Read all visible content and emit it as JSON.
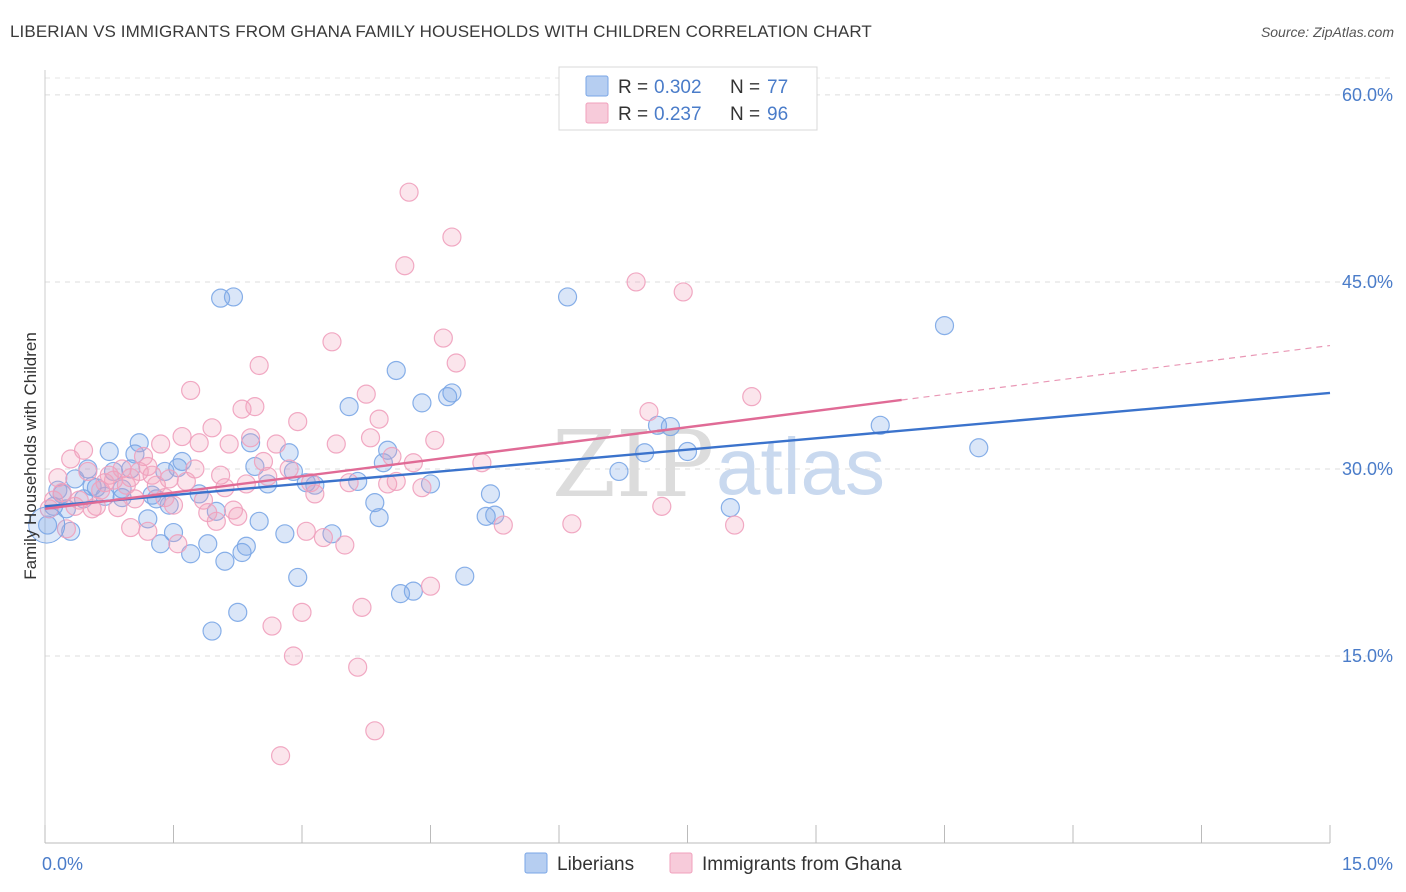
{
  "header": {
    "title": "LIBERIAN VS IMMIGRANTS FROM GHANA FAMILY HOUSEHOLDS WITH CHILDREN CORRELATION CHART",
    "source": "Source: ZipAtlas.com"
  },
  "watermark": {
    "zip": "ZIP",
    "atlas": "atlas"
  },
  "legend_top": {
    "rows": [
      {
        "r_label": "R =",
        "r_value": "0.302",
        "n_label": "N =",
        "n_value": "77",
        "color": "#7aa6e6"
      },
      {
        "r_label": "R =",
        "r_value": "0.237",
        "n_label": "N =",
        "n_value": "96",
        "color": "#f0a0bc"
      }
    ]
  },
  "legend_bottom": {
    "items": [
      {
        "label": "Liberians",
        "color": "#7aa6e6"
      },
      {
        "label": "Immigrants from Ghana",
        "color": "#f0a0bc"
      }
    ]
  },
  "chart_data": {
    "type": "scatter",
    "xlabel": "",
    "ylabel": "Family Households with Children",
    "xlim": [
      0,
      15
    ],
    "ylim": [
      0,
      62
    ],
    "x_tick_labels": [
      {
        "value": 0,
        "label": "0.0%"
      },
      {
        "value": 15,
        "label": "15.0%"
      }
    ],
    "y_tick_labels": [
      {
        "value": 15,
        "label": "15.0%"
      },
      {
        "value": 30,
        "label": "30.0%"
      },
      {
        "value": 45,
        "label": "45.0%"
      },
      {
        "value": 60,
        "label": "60.0%"
      }
    ],
    "grid": true,
    "legend_position": "top-center",
    "series": [
      {
        "name": "Liberians",
        "color": "#7aa6e6",
        "line_color": "#3b73cc",
        "trend": {
          "x": [
            0,
            15
          ],
          "y": [
            27.0,
            36.1
          ],
          "solid_to": 15
        },
        "points": [
          [
            0.03,
            25.5
          ],
          [
            0.1,
            27.0
          ],
          [
            0.2,
            28.0
          ],
          [
            0.3,
            25.0
          ],
          [
            0.35,
            29.2
          ],
          [
            0.45,
            27.6
          ],
          [
            0.5,
            30.0
          ],
          [
            0.6,
            28.5
          ],
          [
            0.7,
            27.8
          ],
          [
            0.75,
            31.4
          ],
          [
            0.8,
            29.8
          ],
          [
            0.9,
            27.7
          ],
          [
            1.0,
            30.0
          ],
          [
            1.05,
            31.2
          ],
          [
            1.1,
            32.1
          ],
          [
            1.2,
            26.0
          ],
          [
            1.3,
            27.6
          ],
          [
            1.35,
            24.0
          ],
          [
            1.4,
            29.8
          ],
          [
            1.5,
            24.9
          ],
          [
            1.55,
            30.1
          ],
          [
            1.6,
            30.6
          ],
          [
            1.7,
            23.2
          ],
          [
            1.8,
            28.0
          ],
          [
            1.9,
            24.0
          ],
          [
            1.95,
            17.0
          ],
          [
            2.0,
            26.6
          ],
          [
            2.05,
            43.7
          ],
          [
            2.1,
            22.6
          ],
          [
            2.2,
            43.8
          ],
          [
            2.25,
            18.5
          ],
          [
            2.3,
            23.3
          ],
          [
            2.35,
            23.8
          ],
          [
            2.4,
            32.1
          ],
          [
            2.45,
            30.2
          ],
          [
            2.5,
            25.8
          ],
          [
            2.6,
            28.8
          ],
          [
            2.8,
            24.8
          ],
          [
            2.85,
            31.3
          ],
          [
            2.9,
            29.8
          ],
          [
            2.95,
            21.3
          ],
          [
            3.05,
            28.9
          ],
          [
            3.15,
            28.7
          ],
          [
            3.35,
            24.8
          ],
          [
            3.55,
            35.0
          ],
          [
            3.65,
            29.0
          ],
          [
            3.85,
            27.3
          ],
          [
            3.9,
            26.1
          ],
          [
            3.95,
            30.5
          ],
          [
            4.0,
            31.5
          ],
          [
            4.1,
            37.9
          ],
          [
            4.15,
            20.0
          ],
          [
            4.3,
            20.2
          ],
          [
            4.4,
            35.3
          ],
          [
            4.5,
            28.8
          ],
          [
            4.7,
            35.8
          ],
          [
            4.75,
            36.1
          ],
          [
            4.9,
            21.4
          ],
          [
            5.15,
            26.2
          ],
          [
            5.2,
            28.0
          ],
          [
            5.25,
            26.3
          ],
          [
            6.1,
            43.8
          ],
          [
            6.7,
            29.8
          ],
          [
            7.0,
            31.3
          ],
          [
            7.15,
            33.5
          ],
          [
            7.3,
            33.4
          ],
          [
            7.5,
            31.4
          ],
          [
            8.0,
            26.9
          ],
          [
            9.75,
            33.5
          ],
          [
            10.5,
            41.5
          ],
          [
            10.9,
            31.7
          ],
          [
            0.15,
            28.3
          ],
          [
            0.25,
            26.8
          ],
          [
            0.55,
            28.6
          ],
          [
            0.9,
            28.4
          ],
          [
            1.25,
            27.9
          ],
          [
            1.45,
            27.1
          ]
        ]
      },
      {
        "name": "Immigrants from Ghana",
        "color": "#f0a0bc",
        "line_color": "#e06b96",
        "trend": {
          "x": [
            0,
            15
          ],
          "y": [
            26.8,
            39.9
          ],
          "solid_to": 10.0
        },
        "points": [
          [
            0.05,
            26.8
          ],
          [
            0.1,
            27.5
          ],
          [
            0.15,
            29.3
          ],
          [
            0.2,
            28.1
          ],
          [
            0.25,
            25.2
          ],
          [
            0.3,
            30.8
          ],
          [
            0.4,
            27.5
          ],
          [
            0.45,
            31.5
          ],
          [
            0.5,
            29.8
          ],
          [
            0.55,
            26.8
          ],
          [
            0.6,
            27.0
          ],
          [
            0.7,
            28.9
          ],
          [
            0.75,
            29.5
          ],
          [
            0.8,
            29.1
          ],
          [
            0.9,
            30.0
          ],
          [
            0.95,
            28.7
          ],
          [
            1.0,
            29.3
          ],
          [
            1.1,
            29.8
          ],
          [
            1.15,
            31.0
          ],
          [
            1.2,
            25.0
          ],
          [
            1.25,
            29.5
          ],
          [
            1.3,
            28.7
          ],
          [
            1.35,
            32.0
          ],
          [
            1.4,
            27.7
          ],
          [
            1.45,
            29.2
          ],
          [
            1.5,
            27.1
          ],
          [
            1.55,
            24.0
          ],
          [
            1.6,
            32.6
          ],
          [
            1.65,
            29.0
          ],
          [
            1.7,
            36.3
          ],
          [
            1.75,
            30.0
          ],
          [
            1.8,
            32.1
          ],
          [
            1.85,
            27.5
          ],
          [
            1.9,
            26.5
          ],
          [
            1.95,
            33.3
          ],
          [
            2.0,
            25.8
          ],
          [
            2.05,
            29.5
          ],
          [
            2.1,
            28.5
          ],
          [
            2.15,
            32.0
          ],
          [
            2.2,
            26.7
          ],
          [
            2.25,
            26.2
          ],
          [
            2.3,
            34.8
          ],
          [
            2.35,
            28.8
          ],
          [
            2.4,
            32.5
          ],
          [
            2.45,
            35.0
          ],
          [
            2.5,
            38.3
          ],
          [
            2.6,
            29.4
          ],
          [
            2.65,
            17.4
          ],
          [
            2.7,
            32.0
          ],
          [
            2.75,
            7.0
          ],
          [
            2.85,
            30.0
          ],
          [
            2.9,
            15.0
          ],
          [
            2.95,
            33.8
          ],
          [
            3.0,
            18.5
          ],
          [
            3.05,
            25.0
          ],
          [
            3.1,
            28.9
          ],
          [
            3.15,
            28.0
          ],
          [
            3.25,
            24.5
          ],
          [
            3.35,
            40.2
          ],
          [
            3.4,
            32.0
          ],
          [
            3.5,
            23.9
          ],
          [
            3.55,
            28.9
          ],
          [
            3.65,
            14.1
          ],
          [
            3.7,
            18.9
          ],
          [
            3.75,
            36.0
          ],
          [
            3.8,
            32.5
          ],
          [
            3.85,
            9.0
          ],
          [
            3.9,
            34.0
          ],
          [
            4.0,
            28.8
          ],
          [
            4.05,
            31.0
          ],
          [
            4.1,
            29.0
          ],
          [
            4.2,
            46.3
          ],
          [
            4.25,
            52.2
          ],
          [
            4.3,
            30.5
          ],
          [
            4.4,
            28.5
          ],
          [
            4.5,
            20.6
          ],
          [
            4.55,
            32.3
          ],
          [
            4.65,
            40.5
          ],
          [
            4.75,
            48.6
          ],
          [
            4.8,
            38.5
          ],
          [
            5.1,
            30.5
          ],
          [
            5.35,
            25.5
          ],
          [
            6.15,
            25.6
          ],
          [
            6.9,
            45.0
          ],
          [
            7.05,
            34.6
          ],
          [
            7.2,
            27.0
          ],
          [
            7.45,
            44.2
          ],
          [
            8.05,
            25.5
          ],
          [
            8.25,
            35.8
          ],
          [
            1.05,
            27.6
          ],
          [
            1.2,
            30.2
          ],
          [
            2.55,
            30.6
          ],
          [
            0.35,
            27.0
          ],
          [
            0.65,
            28.3
          ],
          [
            0.85,
            26.9
          ],
          [
            1.0,
            25.3
          ]
        ]
      }
    ]
  }
}
